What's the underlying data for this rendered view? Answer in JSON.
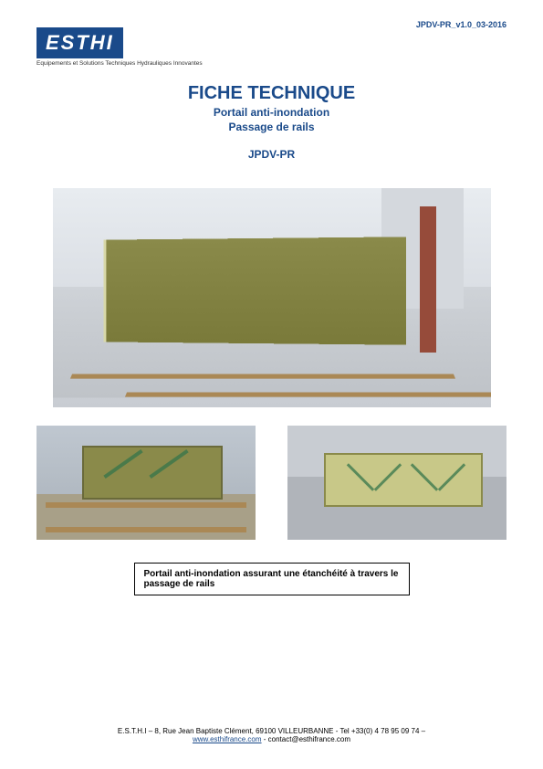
{
  "header": {
    "doc_ref": "JPDV-PR_v1.0_03-2016"
  },
  "logo": {
    "brand": "ESTHI",
    "tagline": "Equipements et Solutions Techniques Hydrauliques Innovantes"
  },
  "title": {
    "main": "FICHE TECHNIQUE",
    "sub1": "Portail anti-inondation",
    "sub2": "Passage de rails",
    "code": "JPDV-PR"
  },
  "description": {
    "text": "Portail anti-inondation assurant une étanchéité à travers le passage de rails"
  },
  "footer": {
    "line1_prefix": "E.S.T.H.I – 8, Rue Jean Baptiste Clément, 69100 VILLEURBANNE - Tel +33(0) 4 78 95 09 74 –",
    "website": "www.esthifrance.com",
    "separator": " - ",
    "email": "contact@esthifrance.com"
  },
  "colors": {
    "brand_blue": "#1a4a8a",
    "panel_olive": "#8a8a4a",
    "post_brown": "#964b3a",
    "rail_tan": "#aa8855",
    "brace_green": "#4a7a4a"
  }
}
